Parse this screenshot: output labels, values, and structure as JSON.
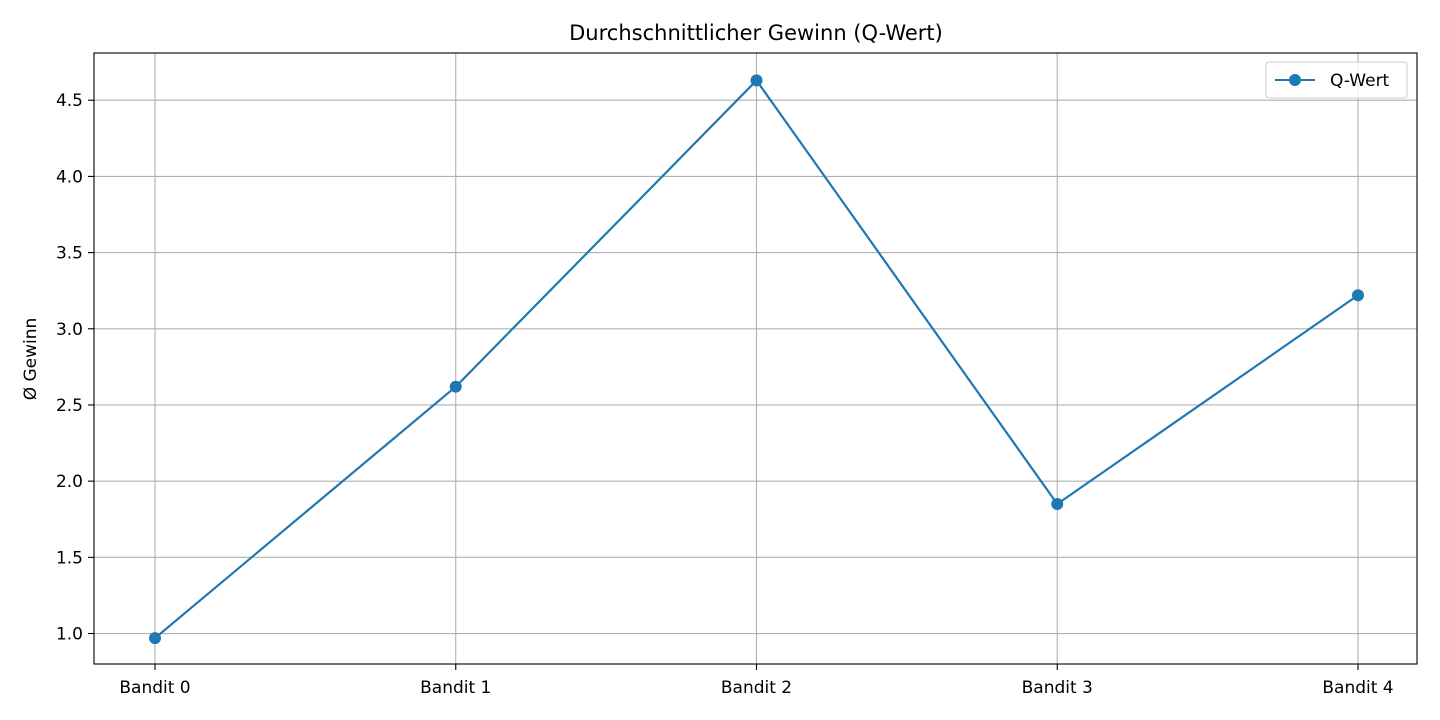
{
  "chart_data": {
    "type": "line",
    "title": "Durchschnittlicher Gewinn (Q-Wert)",
    "xlabel": "",
    "ylabel": "Ø Gewinn",
    "categories": [
      "Bandit 0",
      "Bandit 1",
      "Bandit 2",
      "Bandit 3",
      "Bandit 4"
    ],
    "series": [
      {
        "name": "Q-Wert",
        "color": "#1f77b4",
        "marker": "circle",
        "values": [
          0.97,
          2.62,
          4.63,
          1.85,
          3.22
        ]
      }
    ],
    "yticks": [
      "1.0",
      "1.5",
      "2.0",
      "2.5",
      "3.0",
      "3.5",
      "4.0",
      "4.5"
    ],
    "ylim": [
      0.8,
      4.81
    ],
    "grid": true,
    "legend_position": "top-right"
  }
}
